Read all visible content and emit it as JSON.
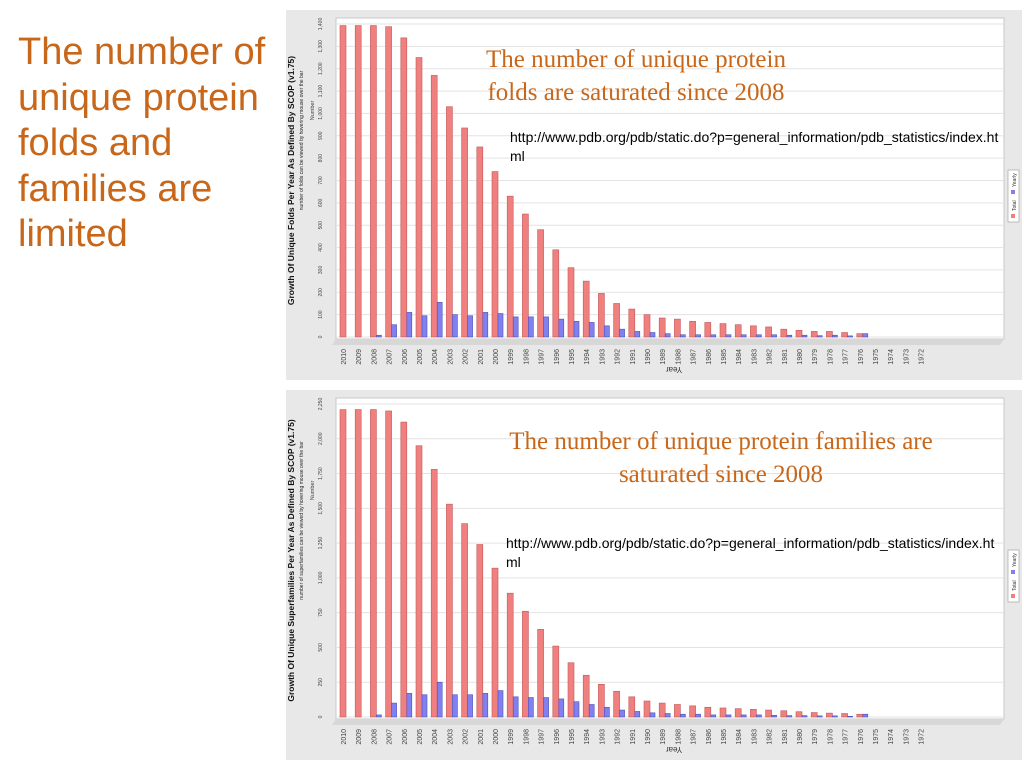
{
  "slide": {
    "title": "The number of unique protein folds and families are limited"
  },
  "charts": [
    {
      "caption": "The number of unique protein folds are saturated since 2008",
      "url": "http://www.pdb.org/pdb/static.do?p=general_information/pdb_statistics/index.html"
    },
    {
      "caption": "The number of unique protein families are saturated since 2008",
      "url": "http://www.pdb.org/pdb/static.do?p=general_information/pdb_statistics/index.html"
    }
  ],
  "chart_data": [
    {
      "type": "bar",
      "title": "Growth Of Unique Folds Per Year As Defined By SCOP (v1.75)",
      "subtitle": "number of folds can be viewed by hovering mouse over the bar",
      "xlabel": "Year",
      "ylabel": "Number",
      "ylim": [
        0,
        1400
      ],
      "yticks": [
        0,
        100,
        200,
        300,
        400,
        500,
        600,
        700,
        800,
        900,
        1000,
        1100,
        1200,
        1300,
        1400
      ],
      "ytick_labels": [
        "0",
        "100",
        "200",
        "300",
        "400",
        "500",
        "600",
        "700",
        "800",
        "900",
        "1,000",
        "1,100",
        "1,200",
        "1,300",
        "1,400"
      ],
      "categories": [
        "2010",
        "2009",
        "2008",
        "2007",
        "2006",
        "2005",
        "2004",
        "2003",
        "2002",
        "2001",
        "2000",
        "1999",
        "1998",
        "1997",
        "1996",
        "1995",
        "1994",
        "1993",
        "1992",
        "1991",
        "1990",
        "1989",
        "1988",
        "1987",
        "1986",
        "1985",
        "1984",
        "1983",
        "1982",
        "1981",
        "1980",
        "1979",
        "1978",
        "1977",
        "1976",
        "1975",
        "1974",
        "1973",
        "1972"
      ],
      "series": [
        {
          "name": "Total",
          "color": "#f08080",
          "values": [
            1393,
            1393,
            1393,
            1388,
            1338,
            1250,
            1170,
            1030,
            935,
            850,
            740,
            630,
            550,
            480,
            390,
            310,
            250,
            195,
            150,
            125,
            100,
            85,
            80,
            70,
            65,
            60,
            55,
            50,
            45,
            35,
            30,
            25,
            25,
            20,
            15,
            0,
            0,
            0,
            0
          ]
        },
        {
          "name": "Yearly",
          "color": "#8080f0",
          "values": [
            0,
            0,
            8,
            55,
            110,
            95,
            155,
            100,
            95,
            110,
            105,
            90,
            90,
            90,
            80,
            70,
            65,
            50,
            35,
            25,
            20,
            15,
            10,
            10,
            10,
            10,
            10,
            10,
            10,
            8,
            8,
            6,
            8,
            5,
            15,
            0,
            0,
            0,
            0
          ]
        }
      ],
      "legend": "right"
    },
    {
      "type": "bar",
      "title": "Growth Of Unique Superfamilies Per Year As Defined By SCOP (v1.75)",
      "subtitle": "number of superfamilies can be viewed by hovering mouse over the bar",
      "xlabel": "Year",
      "ylabel": "Number",
      "ylim": [
        0,
        2250
      ],
      "yticks": [
        0,
        250,
        500,
        750,
        1000,
        1250,
        1500,
        1750,
        2000,
        2250
      ],
      "ytick_labels": [
        "0",
        "250",
        "500",
        "750",
        "1,000",
        "1,250",
        "1,500",
        "1,750",
        "2,000",
        "2,250"
      ],
      "categories": [
        "2010",
        "2009",
        "2008",
        "2007",
        "2006",
        "2005",
        "2004",
        "2003",
        "2002",
        "2001",
        "2000",
        "1999",
        "1998",
        "1997",
        "1996",
        "1995",
        "1994",
        "1993",
        "1992",
        "1991",
        "1990",
        "1989",
        "1988",
        "1987",
        "1986",
        "1985",
        "1984",
        "1983",
        "1982",
        "1981",
        "1980",
        "1979",
        "1978",
        "1977",
        "1976",
        "1975",
        "1974",
        "1973",
        "1972"
      ],
      "series": [
        {
          "name": "Total",
          "color": "#f08080",
          "values": [
            2210,
            2210,
            2210,
            2200,
            2120,
            1950,
            1780,
            1530,
            1390,
            1240,
            1070,
            890,
            760,
            630,
            510,
            390,
            300,
            235,
            185,
            145,
            115,
            100,
            90,
            80,
            70,
            65,
            60,
            55,
            50,
            45,
            38,
            32,
            28,
            25,
            20,
            0,
            0,
            0,
            0
          ]
        },
        {
          "name": "Yearly",
          "color": "#8080f0",
          "values": [
            0,
            0,
            15,
            100,
            170,
            160,
            250,
            160,
            160,
            170,
            190,
            145,
            140,
            140,
            130,
            110,
            90,
            70,
            50,
            40,
            30,
            25,
            20,
            20,
            15,
            15,
            15,
            15,
            12,
            10,
            10,
            8,
            8,
            5,
            20,
            0,
            0,
            0,
            0
          ]
        }
      ],
      "legend": "right"
    }
  ]
}
